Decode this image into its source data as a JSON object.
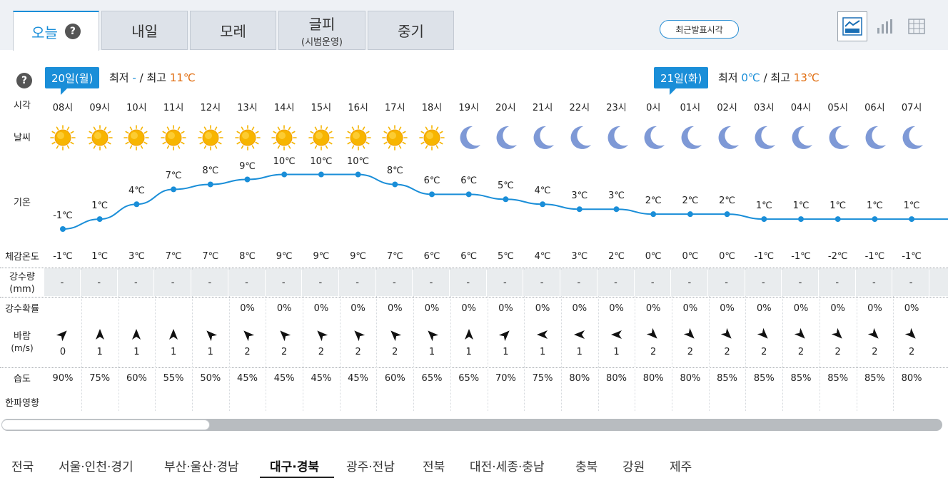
{
  "tabs": [
    {
      "label": "오늘",
      "sub": "",
      "active": true
    },
    {
      "label": "내일",
      "sub": ""
    },
    {
      "label": "모레",
      "sub": ""
    },
    {
      "label": "글피",
      "sub": "(시범운영)"
    },
    {
      "label": "중기",
      "sub": ""
    }
  ],
  "help_glyph": "?",
  "recent_button": "최근발표시각",
  "view_modes": [
    {
      "icon": "graph-view-icon",
      "active": true
    },
    {
      "icon": "bar-chart-view-icon",
      "active": false
    },
    {
      "icon": "table-view-icon",
      "active": false
    }
  ],
  "row_labels": {
    "time": "시각",
    "weather": "날씨",
    "temp": "기온",
    "feels": "체감온도",
    "precip_l1": "강수량",
    "precip_l2": "(mm)",
    "precip_prob": "강수확률",
    "wind_l1": "바람",
    "wind_l2": "(m/s)",
    "humidity": "습도",
    "cold_wave": "한파영향"
  },
  "days": [
    {
      "badge": "20일(월)",
      "min_label": "최저",
      "min": "-",
      "sep": "/",
      "max_label": "최고",
      "max": "11℃"
    },
    {
      "badge": "21일(화)",
      "min_label": "최저",
      "min": "0℃",
      "sep": "/",
      "max_label": "최고",
      "max": "13℃"
    }
  ],
  "temp_unit": "℃",
  "hours": [
    {
      "time": "08시",
      "sky": "sun",
      "temp": -1,
      "feels": "-1℃",
      "precip": "-",
      "prob": "",
      "wind_dir": "NE",
      "wind": "0",
      "hum": "90%"
    },
    {
      "time": "09시",
      "sky": "sun",
      "temp": 1,
      "feels": "1℃",
      "precip": "-",
      "prob": "",
      "wind_dir": "N",
      "wind": "1",
      "hum": "75%"
    },
    {
      "time": "10시",
      "sky": "sun",
      "temp": 4,
      "feels": "3℃",
      "precip": "-",
      "prob": "",
      "wind_dir": "N",
      "wind": "1",
      "hum": "60%"
    },
    {
      "time": "11시",
      "sky": "sun",
      "temp": 7,
      "feels": "7℃",
      "precip": "-",
      "prob": "",
      "wind_dir": "N",
      "wind": "1",
      "hum": "55%"
    },
    {
      "time": "12시",
      "sky": "sun",
      "temp": 8,
      "feels": "7℃",
      "precip": "-",
      "prob": "",
      "wind_dir": "NW",
      "wind": "1",
      "hum": "50%"
    },
    {
      "time": "13시",
      "sky": "sun",
      "temp": 9,
      "feels": "8℃",
      "precip": "-",
      "prob": "0%",
      "wind_dir": "NW",
      "wind": "2",
      "hum": "45%"
    },
    {
      "time": "14시",
      "sky": "sun",
      "temp": 10,
      "feels": "9℃",
      "precip": "-",
      "prob": "0%",
      "wind_dir": "NW",
      "wind": "2",
      "hum": "45%"
    },
    {
      "time": "15시",
      "sky": "sun",
      "temp": 10,
      "feels": "9℃",
      "precip": "-",
      "prob": "0%",
      "wind_dir": "NW",
      "wind": "2",
      "hum": "45%"
    },
    {
      "time": "16시",
      "sky": "sun",
      "temp": 10,
      "feels": "9℃",
      "precip": "-",
      "prob": "0%",
      "wind_dir": "NW",
      "wind": "2",
      "hum": "45%"
    },
    {
      "time": "17시",
      "sky": "sun",
      "temp": 8,
      "feels": "7℃",
      "precip": "-",
      "prob": "0%",
      "wind_dir": "NW",
      "wind": "2",
      "hum": "60%"
    },
    {
      "time": "18시",
      "sky": "sun",
      "temp": 6,
      "feels": "6℃",
      "precip": "-",
      "prob": "0%",
      "wind_dir": "NW",
      "wind": "1",
      "hum": "65%"
    },
    {
      "time": "19시",
      "sky": "moon",
      "temp": 6,
      "feels": "6℃",
      "precip": "-",
      "prob": "0%",
      "wind_dir": "N",
      "wind": "1",
      "hum": "65%"
    },
    {
      "time": "20시",
      "sky": "moon",
      "temp": 5,
      "feels": "5℃",
      "precip": "-",
      "prob": "0%",
      "wind_dir": "NE",
      "wind": "1",
      "hum": "70%"
    },
    {
      "time": "21시",
      "sky": "moon",
      "temp": 4,
      "feels": "4℃",
      "precip": "-",
      "prob": "0%",
      "wind_dir": "W",
      "wind": "1",
      "hum": "75%"
    },
    {
      "time": "22시",
      "sky": "moon",
      "temp": 3,
      "feels": "3℃",
      "precip": "-",
      "prob": "0%",
      "wind_dir": "W",
      "wind": "1",
      "hum": "80%"
    },
    {
      "time": "23시",
      "sky": "moon",
      "temp": 3,
      "feels": "2℃",
      "precip": "-",
      "prob": "0%",
      "wind_dir": "W",
      "wind": "1",
      "hum": "80%"
    },
    {
      "time": "0시",
      "sky": "moon",
      "temp": 2,
      "feels": "0℃",
      "precip": "-",
      "prob": "0%",
      "wind_dir": "SE",
      "wind": "2",
      "hum": "80%"
    },
    {
      "time": "01시",
      "sky": "moon",
      "temp": 2,
      "feels": "0℃",
      "precip": "-",
      "prob": "0%",
      "wind_dir": "SE",
      "wind": "2",
      "hum": "80%"
    },
    {
      "time": "02시",
      "sky": "moon",
      "temp": 2,
      "feels": "0℃",
      "precip": "-",
      "prob": "0%",
      "wind_dir": "SE",
      "wind": "2",
      "hum": "85%"
    },
    {
      "time": "03시",
      "sky": "moon",
      "temp": 1,
      "feels": "-1℃",
      "precip": "-",
      "prob": "0%",
      "wind_dir": "SE",
      "wind": "2",
      "hum": "85%"
    },
    {
      "time": "04시",
      "sky": "moon",
      "temp": 1,
      "feels": "-1℃",
      "precip": "-",
      "prob": "0%",
      "wind_dir": "SE",
      "wind": "2",
      "hum": "85%"
    },
    {
      "time": "05시",
      "sky": "moon",
      "temp": 1,
      "feels": "-2℃",
      "precip": "-",
      "prob": "0%",
      "wind_dir": "SE",
      "wind": "2",
      "hum": "85%"
    },
    {
      "time": "06시",
      "sky": "moon",
      "temp": 1,
      "feels": "-1℃",
      "precip": "-",
      "prob": "0%",
      "wind_dir": "SE",
      "wind": "2",
      "hum": "85%"
    },
    {
      "time": "07시",
      "sky": "moon",
      "temp": 1,
      "feels": "-1℃",
      "precip": "-",
      "prob": "0%",
      "wind_dir": "SE",
      "wind": "2",
      "hum": "80%"
    }
  ],
  "regions": [
    {
      "label": "전국"
    },
    {
      "label": "서울·인천·경기"
    },
    {
      "label": "부산·울산·경남"
    },
    {
      "label": "대구·경북",
      "active": true
    },
    {
      "label": "광주·전남"
    },
    {
      "label": "전북"
    },
    {
      "label": "대전·세종·충남"
    },
    {
      "label": "충북"
    },
    {
      "label": "강원"
    },
    {
      "label": "제주"
    }
  ],
  "colors": {
    "accent": "#1a8ed8",
    "max_temp": "#e06d10",
    "sun": "#f5b400",
    "moon": "#7e99d6"
  }
}
